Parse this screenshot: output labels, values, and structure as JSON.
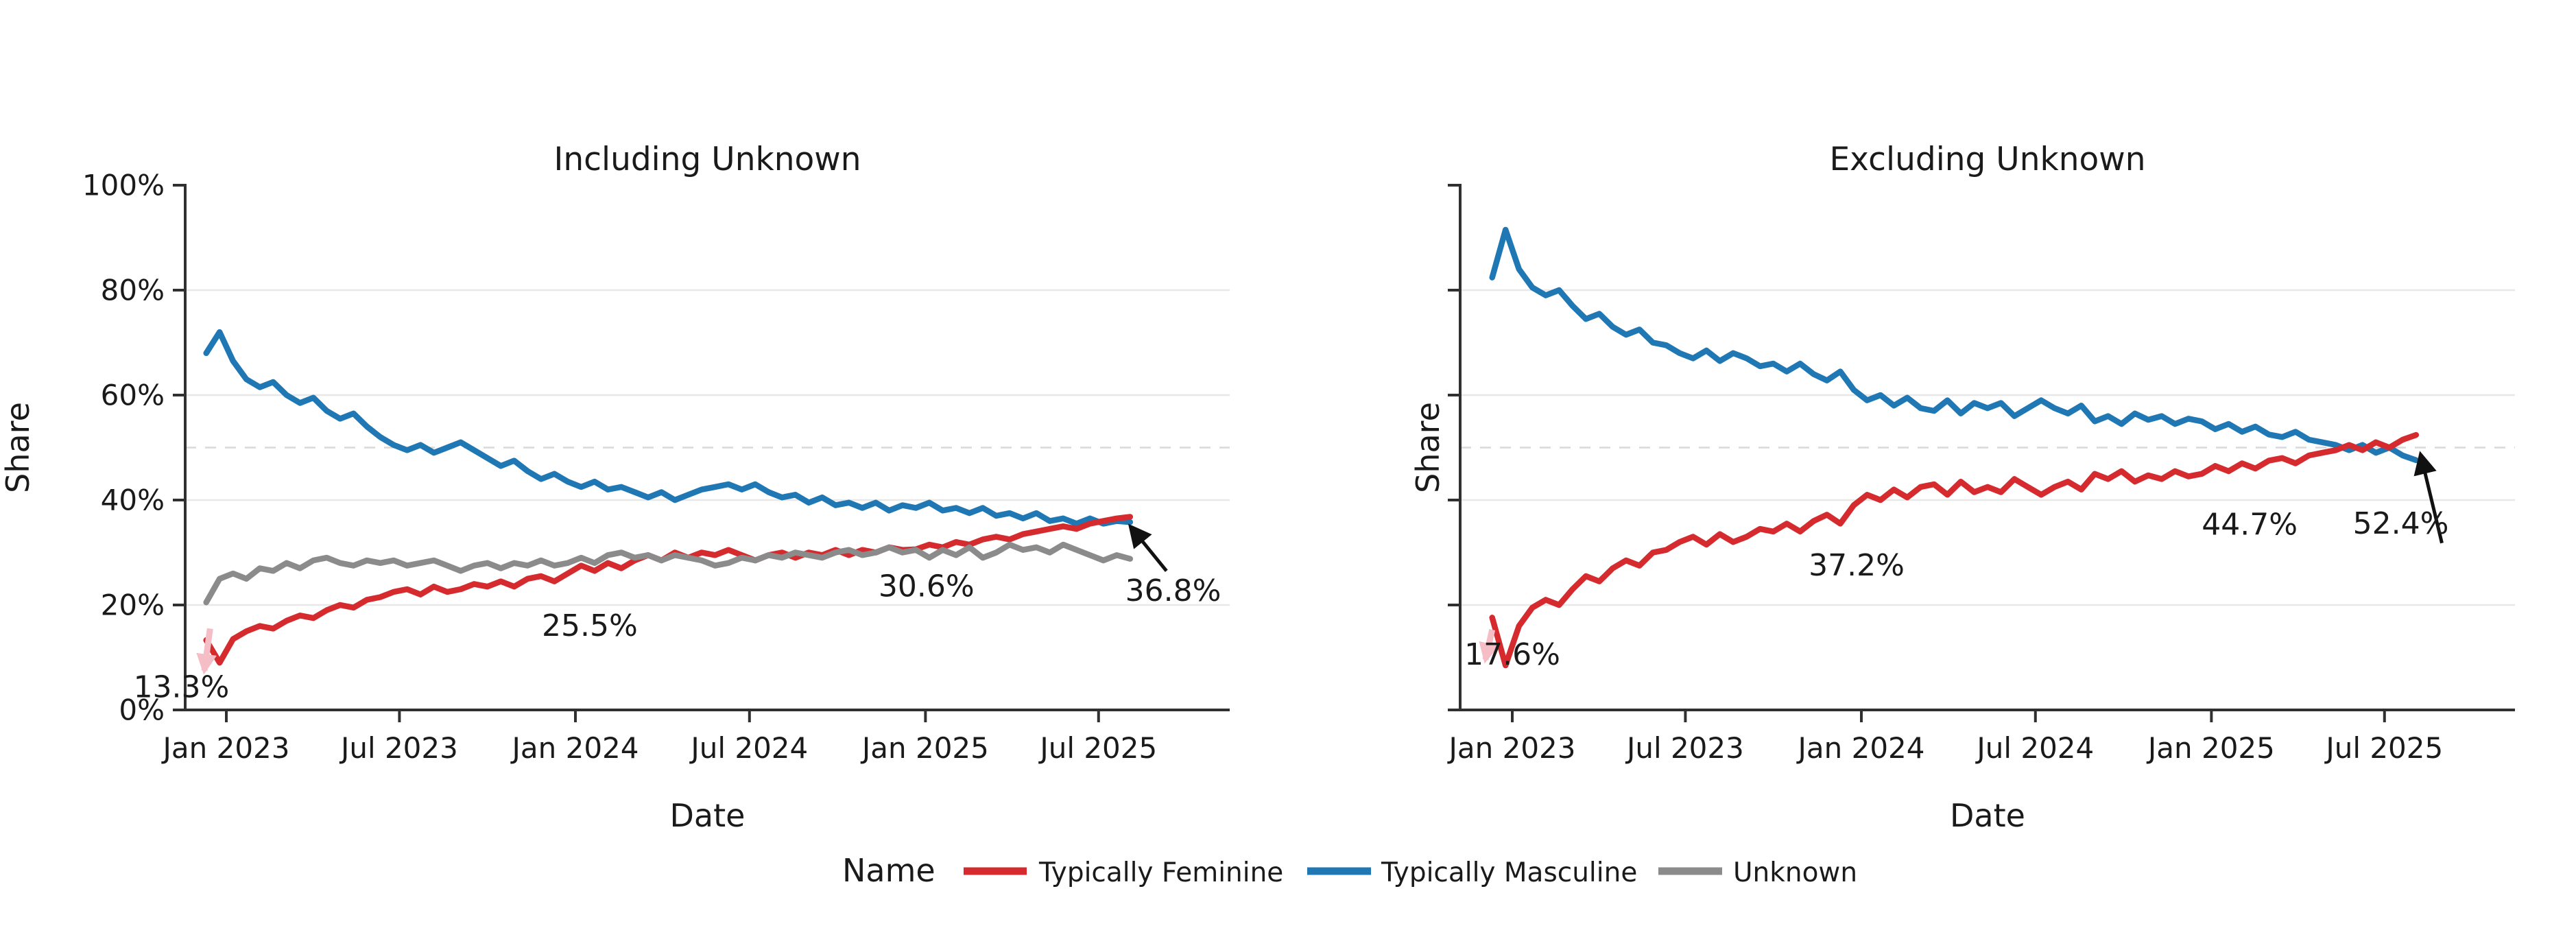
{
  "figure": {
    "background": "#ffffff",
    "legend": {
      "title": "Name",
      "items": [
        {
          "label": "Typically Feminine",
          "color": "#d62b2e"
        },
        {
          "label": "Typically Masculine",
          "color": "#1f77b4"
        },
        {
          "label": "Unknown",
          "color": "#8b8b8b"
        }
      ]
    },
    "colors": {
      "axis": "#303030",
      "grid_solid": "#e8e8e8",
      "grid_dashed": "#d9d9d9",
      "annotation_arrow": "#111111",
      "start_arrow_pink": "#f5bdc5",
      "text": "#1a1a1a"
    }
  },
  "chart_data": [
    {
      "type": "line",
      "title": "Including Unknown",
      "xlabel": "Date",
      "ylabel": "Share",
      "ylim": [
        0,
        100
      ],
      "y_ticks": [
        {
          "v": 0,
          "label": "0%"
        },
        {
          "v": 20,
          "label": "20%"
        },
        {
          "v": 40,
          "label": "40%"
        },
        {
          "v": 60,
          "label": "60%"
        },
        {
          "v": 80,
          "label": "80%"
        },
        {
          "v": 100,
          "label": "100%"
        }
      ],
      "y_grid_solid": [
        20,
        40,
        60,
        80
      ],
      "y_grid_dashed": [
        50
      ],
      "x_ticks": [
        {
          "day": 0,
          "label": "Jan 2023"
        },
        {
          "day": 181,
          "label": "Jul 2023"
        },
        {
          "day": 365,
          "label": "Jan 2024"
        },
        {
          "day": 547,
          "label": "Jul 2024"
        },
        {
          "day": 731,
          "label": "Jan 2025"
        },
        {
          "day": 912,
          "label": "Jul 2025"
        }
      ],
      "x_start_day": -21,
      "x_step_days": 14,
      "series": [
        {
          "name": "Typically Masculine",
          "color": "#1f77b4",
          "values": [
            68.0,
            72.0,
            66.5,
            63.0,
            61.5,
            62.5,
            60.0,
            58.5,
            59.5,
            57.0,
            55.5,
            56.5,
            54.0,
            52.0,
            50.5,
            49.5,
            50.5,
            49.0,
            50.0,
            51.0,
            49.5,
            48.0,
            46.5,
            47.5,
            45.5,
            44.0,
            45.0,
            43.5,
            42.5,
            43.5,
            42.0,
            42.5,
            41.5,
            40.5,
            41.5,
            40.0,
            41.0,
            42.0,
            42.5,
            43.0,
            42.0,
            43.0,
            41.5,
            40.5,
            41.0,
            39.5,
            40.5,
            39.0,
            39.5,
            38.5,
            39.5,
            38.0,
            39.0,
            38.5,
            39.5,
            38.0,
            38.5,
            37.5,
            38.5,
            37.0,
            37.5,
            36.5,
            37.5,
            36.0,
            36.5,
            35.5,
            36.5,
            35.5,
            36.0,
            35.8
          ]
        },
        {
          "name": "Typically Feminine",
          "color": "#d62b2e",
          "values": [
            13.3,
            9.0,
            13.5,
            15.0,
            16.0,
            15.5,
            17.0,
            18.0,
            17.5,
            19.0,
            20.0,
            19.5,
            21.0,
            21.5,
            22.5,
            23.0,
            22.0,
            23.5,
            22.5,
            23.0,
            24.0,
            23.5,
            24.5,
            23.5,
            25.0,
            25.5,
            24.5,
            26.0,
            27.5,
            26.5,
            28.0,
            27.0,
            28.5,
            29.5,
            28.5,
            30.0,
            29.0,
            30.0,
            29.5,
            30.5,
            29.5,
            28.5,
            29.5,
            30.0,
            29.0,
            30.0,
            29.5,
            30.5,
            29.5,
            30.5,
            30.0,
            31.0,
            30.5,
            30.6,
            31.5,
            31.0,
            32.0,
            31.5,
            32.5,
            33.0,
            32.5,
            33.5,
            34.0,
            34.5,
            35.0,
            34.5,
            35.5,
            36.0,
            36.5,
            36.8
          ]
        },
        {
          "name": "Unknown",
          "color": "#8b8b8b",
          "values": [
            20.5,
            25.0,
            26.0,
            25.0,
            27.0,
            26.5,
            28.0,
            27.0,
            28.5,
            29.0,
            28.0,
            27.5,
            28.5,
            28.0,
            28.5,
            27.5,
            28.0,
            28.5,
            27.5,
            26.5,
            27.5,
            28.0,
            27.0,
            28.0,
            27.5,
            28.5,
            27.5,
            28.0,
            29.0,
            28.0,
            29.5,
            30.0,
            29.0,
            29.5,
            28.5,
            29.5,
            29.0,
            28.5,
            27.5,
            28.0,
            29.0,
            28.5,
            29.5,
            29.0,
            30.0,
            29.5,
            29.0,
            30.0,
            30.5,
            29.5,
            30.0,
            31.0,
            30.0,
            30.5,
            29.0,
            30.5,
            29.5,
            31.0,
            29.0,
            30.0,
            31.5,
            30.5,
            31.0,
            30.0,
            31.5,
            30.5,
            29.5,
            28.5,
            29.5,
            28.8
          ]
        }
      ],
      "annotations": [
        {
          "text": "13.3%",
          "day": -47,
          "value": 4.3
        },
        {
          "text": "25.5%",
          "day": 380,
          "value": 16.0
        },
        {
          "text": "30.6%",
          "day": 732,
          "value": 23.5
        },
        {
          "text": "36.8%",
          "day": 990,
          "value": 22.7
        }
      ],
      "black_arrow": {
        "from": {
          "day": 983,
          "value": 26.5
        },
        "to": {
          "day": 946,
          "value": 34.8
        }
      },
      "pink_arrow": {
        "from": {
          "day": -17,
          "value": 15.5
        },
        "to": {
          "day": -23,
          "value": 7.5
        }
      }
    },
    {
      "type": "line",
      "title": "Excluding Unknown",
      "xlabel": "Date",
      "ylabel": "Share",
      "ylim": [
        0,
        100
      ],
      "y_ticks": [
        {
          "v": 0,
          "label": ""
        },
        {
          "v": 20,
          "label": ""
        },
        {
          "v": 40,
          "label": ""
        },
        {
          "v": 60,
          "label": ""
        },
        {
          "v": 80,
          "label": ""
        },
        {
          "v": 100,
          "label": ""
        }
      ],
      "y_grid_solid": [
        20,
        40,
        60,
        80
      ],
      "y_grid_dashed": [
        50
      ],
      "x_ticks": [
        {
          "day": 0,
          "label": "Jan 2023"
        },
        {
          "day": 181,
          "label": "Jul 2023"
        },
        {
          "day": 365,
          "label": "Jan 2024"
        },
        {
          "day": 547,
          "label": "Jul 2024"
        },
        {
          "day": 731,
          "label": "Jan 2025"
        },
        {
          "day": 912,
          "label": "Jul 2025"
        }
      ],
      "x_start_day": -21,
      "x_step_days": 14,
      "series": [
        {
          "name": "Typically Masculine",
          "color": "#1f77b4",
          "values": [
            82.4,
            91.5,
            84.0,
            80.5,
            79.0,
            80.0,
            77.0,
            74.5,
            75.5,
            73.0,
            71.5,
            72.5,
            70.0,
            69.5,
            68.0,
            67.0,
            68.5,
            66.5,
            68.0,
            67.0,
            65.5,
            66.0,
            64.5,
            66.0,
            64.0,
            62.8,
            64.5,
            61.0,
            59.0,
            60.0,
            58.0,
            59.5,
            57.5,
            57.0,
            59.0,
            56.5,
            58.5,
            57.5,
            58.5,
            56.0,
            57.5,
            59.0,
            57.5,
            56.5,
            58.0,
            55.0,
            56.0,
            54.5,
            56.5,
            55.3,
            56.0,
            54.5,
            55.5,
            55.0,
            53.5,
            54.5,
            53.0,
            54.0,
            52.5,
            52.0,
            53.0,
            51.5,
            51.0,
            50.5,
            49.5,
            50.5,
            49.0,
            50.0,
            48.5,
            47.6
          ]
        },
        {
          "name": "Typically Feminine",
          "color": "#d62b2e",
          "values": [
            17.6,
            8.5,
            16.0,
            19.5,
            21.0,
            20.0,
            23.0,
            25.5,
            24.5,
            27.0,
            28.5,
            27.5,
            30.0,
            30.5,
            32.0,
            33.0,
            31.5,
            33.5,
            32.0,
            33.0,
            34.5,
            34.0,
            35.5,
            34.0,
            36.0,
            37.2,
            35.5,
            39.0,
            41.0,
            40.0,
            42.0,
            40.5,
            42.5,
            43.0,
            41.0,
            43.5,
            41.5,
            42.5,
            41.5,
            44.0,
            42.5,
            41.0,
            42.5,
            43.5,
            42.0,
            45.0,
            44.0,
            45.5,
            43.5,
            44.7,
            44.0,
            45.5,
            44.5,
            45.0,
            46.5,
            45.5,
            47.0,
            46.0,
            47.5,
            48.0,
            47.0,
            48.5,
            49.0,
            49.5,
            50.5,
            49.5,
            51.0,
            50.0,
            51.5,
            52.4
          ]
        }
      ],
      "annotations": [
        {
          "text": "17.6%",
          "day": 0,
          "value": 10.5
        },
        {
          "text": "37.2%",
          "day": 360,
          "value": 27.5
        },
        {
          "text": "44.7%",
          "day": 771,
          "value": 35.3
        },
        {
          "text": "52.4%",
          "day": 929,
          "value": 35.5
        }
      ],
      "black_arrow": {
        "from": {
          "day": 972,
          "value": 31.8
        },
        "to": {
          "day": 950,
          "value": 48.5
        }
      },
      "pink_arrow": {
        "from": {
          "day": -21,
          "value": 15.3
        },
        "to": {
          "day": -28,
          "value": 9.6
        }
      }
    }
  ]
}
